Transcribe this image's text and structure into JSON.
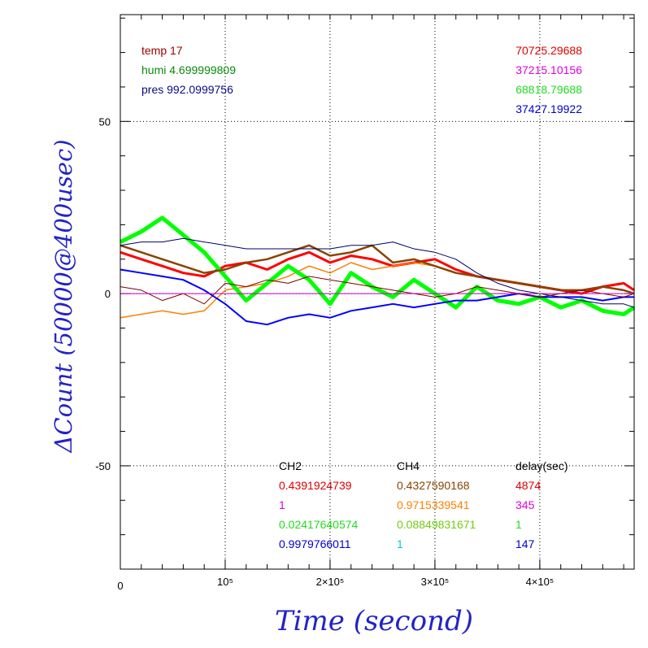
{
  "chart_data": {
    "type": "line",
    "xlabel": "Time (second)",
    "ylabel": "ΔCount (50000@400usec)",
    "xlim": [
      0,
      490000
    ],
    "ylim": [
      -80,
      81
    ],
    "grid": true,
    "x_ticks": [
      {
        "value": 0,
        "label": "0"
      },
      {
        "value": 100000,
        "label": "10⁵"
      },
      {
        "value": 200000,
        "label": "2×10⁵"
      },
      {
        "value": 300000,
        "label": "3×10⁵"
      },
      {
        "value": 400000,
        "label": "4×10⁵"
      }
    ],
    "y_ticks": [
      {
        "value": 50,
        "label": "50"
      },
      {
        "value": 0,
        "label": "0"
      },
      {
        "value": -50,
        "label": "-50"
      }
    ],
    "x": [
      0,
      20000,
      40000,
      60000,
      80000,
      100000,
      120000,
      140000,
      160000,
      180000,
      200000,
      220000,
      240000,
      260000,
      280000,
      300000,
      320000,
      340000,
      360000,
      380000,
      400000,
      420000,
      440000,
      460000,
      480000,
      490000
    ],
    "series": [
      {
        "color": "#ff0000",
        "width": 3,
        "values": [
          12,
          10,
          8,
          6,
          5,
          8,
          9,
          7,
          10,
          12,
          9,
          11,
          10,
          8,
          9,
          10,
          7,
          5,
          4,
          3,
          2,
          1,
          0,
          2,
          3,
          1
        ]
      },
      {
        "color": "#ff8000",
        "width": 1.5,
        "values": [
          -7,
          -6,
          -5,
          -6,
          -5,
          1,
          2,
          3,
          5,
          8,
          6,
          9,
          7,
          8,
          9,
          8,
          6,
          5,
          4,
          3,
          2,
          1,
          1,
          2,
          1,
          0
        ]
      },
      {
        "color": "#00ff00",
        "width": 5,
        "values": [
          15,
          18,
          22,
          17,
          12,
          5,
          -2,
          3,
          8,
          4,
          -3,
          6,
          2,
          -1,
          4,
          0,
          -4,
          2,
          -2,
          -3,
          -1,
          -4,
          -2,
          -5,
          -6,
          -4
        ]
      },
      {
        "color": "#0000ff",
        "width": 2,
        "values": [
          7,
          6,
          5,
          4,
          1,
          -3,
          -8,
          -9,
          -7,
          -6,
          -7,
          -5,
          -4,
          -3,
          -4,
          -3,
          -2,
          -2,
          -1,
          0,
          -1,
          -1,
          -1,
          -2,
          -1,
          -1
        ]
      },
      {
        "color": "#884400",
        "width": 2.5,
        "values": [
          14,
          12,
          10,
          8,
          6,
          7,
          9,
          10,
          12,
          14,
          11,
          12,
          14,
          9,
          10,
          8,
          6,
          5,
          4,
          3,
          2,
          1,
          1,
          2,
          1,
          0
        ]
      },
      {
        "color": "#000066",
        "width": 1,
        "values": [
          14,
          15,
          15,
          16,
          15,
          14,
          13,
          13,
          13,
          13,
          13,
          14,
          14,
          15,
          13,
          12,
          10,
          6,
          3,
          1,
          0,
          -1,
          -2,
          -3,
          -3,
          -4
        ]
      },
      {
        "color": "#800000",
        "width": 1,
        "values": [
          2,
          1,
          -2,
          0,
          -3,
          3,
          2,
          4,
          3,
          5,
          4,
          3,
          2,
          1,
          0,
          -1,
          0,
          2,
          1,
          0,
          -1,
          0,
          1,
          0,
          -1,
          0
        ]
      },
      {
        "color": "#cc00cc",
        "width": 1,
        "values": [
          0,
          0,
          0,
          0,
          0,
          0,
          0,
          0,
          0,
          0,
          0,
          0,
          0,
          0,
          0,
          0,
          0,
          0,
          0,
          0,
          0,
          0,
          0,
          0,
          0,
          0
        ]
      }
    ],
    "env": {
      "temp": {
        "label": "temp",
        "value": "17",
        "color": "#a00000"
      },
      "humi": {
        "label": "humi",
        "value": "4.699999809",
        "color": "#0a8a0a"
      },
      "pres": {
        "label": "pres",
        "value": "992.0999756",
        "color": "#0a0a8a"
      }
    },
    "totals": [
      {
        "text": "70725.29688",
        "color": "#e00000"
      },
      {
        "text": "37215.10156",
        "color": "#dd00dd"
      },
      {
        "text": "68818.79688",
        "color": "#20dd20"
      },
      {
        "text": "37427.19922",
        "color": "#0000cc"
      }
    ],
    "table_headers": {
      "ch2": "CH2",
      "ch4": "CH4",
      "delay": "delay(sec)"
    },
    "table_rows": [
      {
        "ch2": "0.4391924739",
        "ch2_color": "#e00000",
        "ch4": "0.4327590168",
        "ch4_color": "#884400",
        "delay": "4874",
        "delay_color": "#e00000"
      },
      {
        "ch2": "1",
        "ch2_color": "#dd00dd",
        "ch4": "0.9715339541",
        "ch4_color": "#ff8000",
        "delay": "345",
        "delay_color": "#dd00dd"
      },
      {
        "ch2": "0.02417640574",
        "ch2_color": "#20dd20",
        "ch4": "0.08849831671",
        "ch4_color": "#70cc10",
        "delay": "1",
        "delay_color": "#20dd20"
      },
      {
        "ch2": "0.9979766011",
        "ch2_color": "#0000cc",
        "ch4": "1",
        "ch4_color": "#00cccc",
        "delay": "147",
        "delay_color": "#0000cc"
      }
    ]
  }
}
